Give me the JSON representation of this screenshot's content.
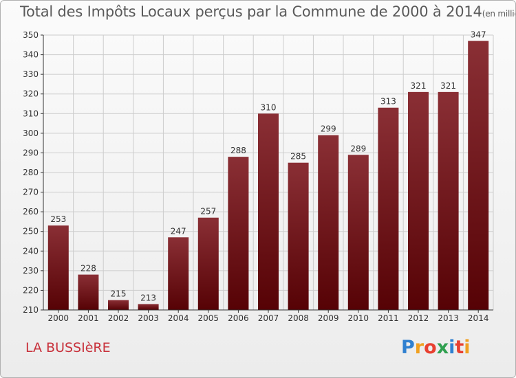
{
  "chart_data": {
    "type": "bar",
    "title": "Total des Impôts Locaux perçus par la Commune de 2000 à 2014",
    "title_unit": "(en milliers d'€)",
    "categories": [
      "2000",
      "2001",
      "2002",
      "2003",
      "2004",
      "2005",
      "2006",
      "2007",
      "2008",
      "2009",
      "2010",
      "2011",
      "2012",
      "2013",
      "2014"
    ],
    "values": [
      253,
      228,
      215,
      213,
      247,
      257,
      288,
      310,
      285,
      299,
      289,
      313,
      321,
      321,
      347
    ],
    "data_labels": [
      "253",
      "228",
      "215",
      "213",
      "247",
      "257",
      "288",
      "310",
      "285",
      "299",
      "289",
      "313",
      "321",
      "321",
      "347"
    ],
    "ylim": [
      210,
      350
    ],
    "yticks": [
      210,
      220,
      230,
      240,
      250,
      260,
      270,
      280,
      290,
      300,
      310,
      320,
      330,
      340,
      350
    ],
    "ytick_labels": [
      "210",
      "220",
      "230",
      "240",
      "250",
      "260",
      "270",
      "280",
      "290",
      "300",
      "310",
      "320",
      "330",
      "340",
      "350"
    ],
    "xlabel": "",
    "ylabel": "",
    "grid": true,
    "colors": {
      "bar_top": "#8a2f35",
      "bar_bottom": "#560205",
      "grid": "#cccccc",
      "axis": "#333333"
    }
  },
  "commune": "LA BUSSIèRE",
  "logo": {
    "letters": [
      "P",
      "r",
      "o",
      "x",
      "i",
      "t",
      "i"
    ],
    "colors": [
      "#2f80d0",
      "#f0a020",
      "#e84030",
      "#30a050",
      "#2f80d0",
      "#e84030",
      "#f0a020"
    ]
  }
}
